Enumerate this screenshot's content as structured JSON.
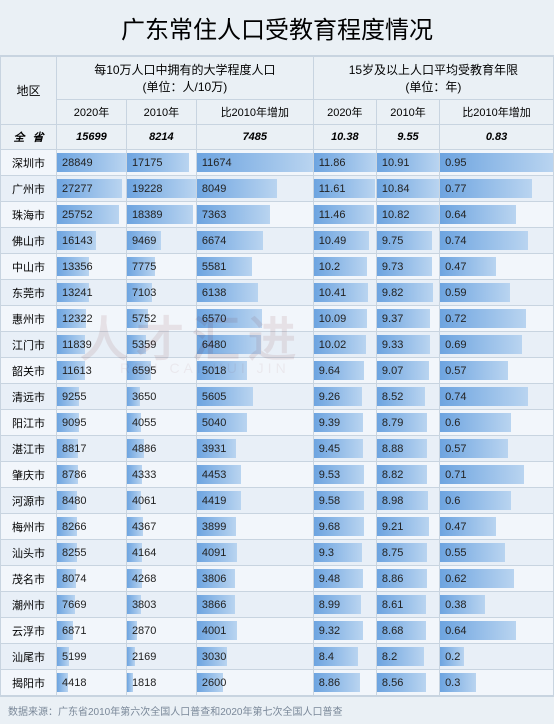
{
  "title": "广东常住人口受教育程度情况",
  "headers": {
    "region": "地区",
    "group1": {
      "title": "每10万人口中拥有的大学程度人口",
      "unit": "单位：人/10万"
    },
    "group2": {
      "title": "15岁及以上人口平均受教育年限",
      "unit": "单位：年"
    },
    "y2020": "2020年",
    "y2010": "2010年",
    "inc": "比2010年增加"
  },
  "province": {
    "name": "全省",
    "u2020": "15699",
    "u2010": "8214",
    "uinc": "7485",
    "y2020": "10.38",
    "y2010": "9.55",
    "yinc": "0.83"
  },
  "bar_color_start": "#6da4e0",
  "bar_color_end": "#b9d4f0",
  "max": {
    "u2020": 28849,
    "u2010": 19228,
    "uinc": 11674,
    "y2020": 11.86,
    "y2010": 10.91,
    "yinc": 0.95
  },
  "rows": [
    {
      "name": "深圳市",
      "u2020": 28849,
      "u2010": 17175,
      "uinc": 11674,
      "y2020": 11.86,
      "y2010": 10.91,
      "yinc": 0.95
    },
    {
      "name": "广州市",
      "u2020": 27277,
      "u2010": 19228,
      "uinc": 8049,
      "y2020": 11.61,
      "y2010": 10.84,
      "yinc": 0.77
    },
    {
      "name": "珠海市",
      "u2020": 25752,
      "u2010": 18389,
      "uinc": 7363,
      "y2020": 11.46,
      "y2010": 10.82,
      "yinc": 0.64
    },
    {
      "name": "佛山市",
      "u2020": 16143,
      "u2010": 9469,
      "uinc": 6674,
      "y2020": 10.49,
      "y2010": 9.75,
      "yinc": 0.74
    },
    {
      "name": "中山市",
      "u2020": 13356,
      "u2010": 7775,
      "uinc": 5581,
      "y2020": 10.2,
      "y2010": 9.73,
      "yinc": 0.47
    },
    {
      "name": "东莞市",
      "u2020": 13241,
      "u2010": 7103,
      "uinc": 6138,
      "y2020": 10.41,
      "y2010": 9.82,
      "yinc": 0.59
    },
    {
      "name": "惠州市",
      "u2020": 12322,
      "u2010": 5752,
      "uinc": 6570,
      "y2020": 10.09,
      "y2010": 9.37,
      "yinc": 0.72
    },
    {
      "name": "江门市",
      "u2020": 11839,
      "u2010": 5359,
      "uinc": 6480,
      "y2020": 10.02,
      "y2010": 9.33,
      "yinc": 0.69
    },
    {
      "name": "韶关市",
      "u2020": 11613,
      "u2010": 6595,
      "uinc": 5018,
      "y2020": 9.64,
      "y2010": 9.07,
      "yinc": 0.57
    },
    {
      "name": "清远市",
      "u2020": 9255,
      "u2010": 3650,
      "uinc": 5605,
      "y2020": 9.26,
      "y2010": 8.52,
      "yinc": 0.74
    },
    {
      "name": "阳江市",
      "u2020": 9095,
      "u2010": 4055,
      "uinc": 5040,
      "y2020": 9.39,
      "y2010": 8.79,
      "yinc": 0.6
    },
    {
      "name": "湛江市",
      "u2020": 8817,
      "u2010": 4886,
      "uinc": 3931,
      "y2020": 9.45,
      "y2010": 8.88,
      "yinc": 0.57
    },
    {
      "name": "肇庆市",
      "u2020": 8786,
      "u2010": 4333,
      "uinc": 4453,
      "y2020": 9.53,
      "y2010": 8.82,
      "yinc": 0.71
    },
    {
      "name": "河源市",
      "u2020": 8480,
      "u2010": 4061,
      "uinc": 4419,
      "y2020": 9.58,
      "y2010": 8.98,
      "yinc": 0.6
    },
    {
      "name": "梅州市",
      "u2020": 8266,
      "u2010": 4367,
      "uinc": 3899,
      "y2020": 9.68,
      "y2010": 9.21,
      "yinc": 0.47
    },
    {
      "name": "汕头市",
      "u2020": 8255,
      "u2010": 4164,
      "uinc": 4091,
      "y2020": 9.3,
      "y2010": 8.75,
      "yinc": 0.55
    },
    {
      "name": "茂名市",
      "u2020": 8074,
      "u2010": 4268,
      "uinc": 3806,
      "y2020": 9.48,
      "y2010": 8.86,
      "yinc": 0.62
    },
    {
      "name": "潮州市",
      "u2020": 7669,
      "u2010": 3803,
      "uinc": 3866,
      "y2020": 8.99,
      "y2010": 8.61,
      "yinc": 0.38
    },
    {
      "name": "云浮市",
      "u2020": 6871,
      "u2010": 2870,
      "uinc": 4001,
      "y2020": 9.32,
      "y2010": 8.68,
      "yinc": 0.64
    },
    {
      "name": "汕尾市",
      "u2020": 5199,
      "u2010": 2169,
      "uinc": 3030,
      "y2020": 8.4,
      "y2010": 8.2,
      "yinc": 0.2
    },
    {
      "name": "揭阳市",
      "u2020": 4418,
      "u2010": 1818,
      "uinc": 2600,
      "y2020": 8.86,
      "y2010": 8.56,
      "yinc": 0.3
    }
  ],
  "source": "数据来源：广东省2010年第六次全国人口普查和2020年第七次全国人口普查"
}
